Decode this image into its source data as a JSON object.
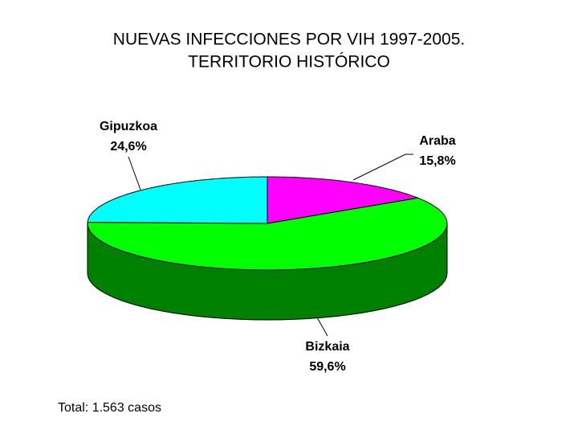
{
  "chart_data": {
    "type": "pie",
    "title": "NUEVAS INFECCIONES POR VIH 1997-2005.",
    "subtitle": "TERRITORIO HISTÓRICO",
    "categories": [
      "Araba",
      "Bizkaia",
      "Gipuzkoa"
    ],
    "values": [
      15.8,
      59.6,
      24.6
    ],
    "value_labels": [
      "15,8%",
      "59,6%",
      "24,6%"
    ],
    "colors": [
      "#ff00ff",
      "#00ff00",
      "#00ffff"
    ],
    "note": "Total: 1.563 casos"
  }
}
